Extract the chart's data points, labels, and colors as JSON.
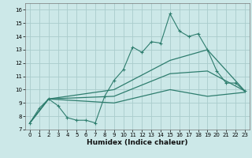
{
  "xlabel": "Humidex (Indice chaleur)",
  "bg_color": "#cce8e8",
  "grid_color": "#aacccc",
  "line_color": "#2e7d6e",
  "xlim": [
    -0.5,
    23.5
  ],
  "ylim": [
    7,
    16.5
  ],
  "xticks": [
    0,
    1,
    2,
    3,
    4,
    5,
    6,
    7,
    8,
    9,
    10,
    11,
    12,
    13,
    14,
    15,
    16,
    17,
    18,
    19,
    20,
    21,
    22,
    23
  ],
  "yticks": [
    7,
    8,
    9,
    10,
    11,
    12,
    13,
    14,
    15,
    16
  ],
  "line1_x": [
    0,
    1,
    2,
    3,
    4,
    5,
    6,
    7,
    8,
    9,
    10,
    11,
    12,
    13,
    14,
    15,
    16,
    17,
    18,
    19,
    20,
    21,
    22,
    23
  ],
  "line1_y": [
    7.5,
    8.6,
    9.3,
    8.8,
    7.9,
    7.7,
    7.7,
    7.5,
    9.5,
    10.7,
    11.5,
    13.2,
    12.8,
    13.6,
    13.5,
    15.7,
    14.4,
    14.0,
    14.2,
    13.0,
    11.4,
    10.5,
    10.5,
    9.9
  ],
  "line2_x": [
    0,
    2,
    9,
    15,
    19,
    23
  ],
  "line2_y": [
    7.5,
    9.3,
    10.0,
    12.2,
    13.0,
    9.9
  ],
  "line3_x": [
    0,
    2,
    9,
    15,
    19,
    23
  ],
  "line3_y": [
    7.5,
    9.3,
    9.5,
    11.2,
    11.4,
    9.9
  ],
  "line4_x": [
    0,
    2,
    9,
    15,
    19,
    23
  ],
  "line4_y": [
    7.5,
    9.3,
    9.0,
    10.0,
    9.5,
    9.8
  ]
}
